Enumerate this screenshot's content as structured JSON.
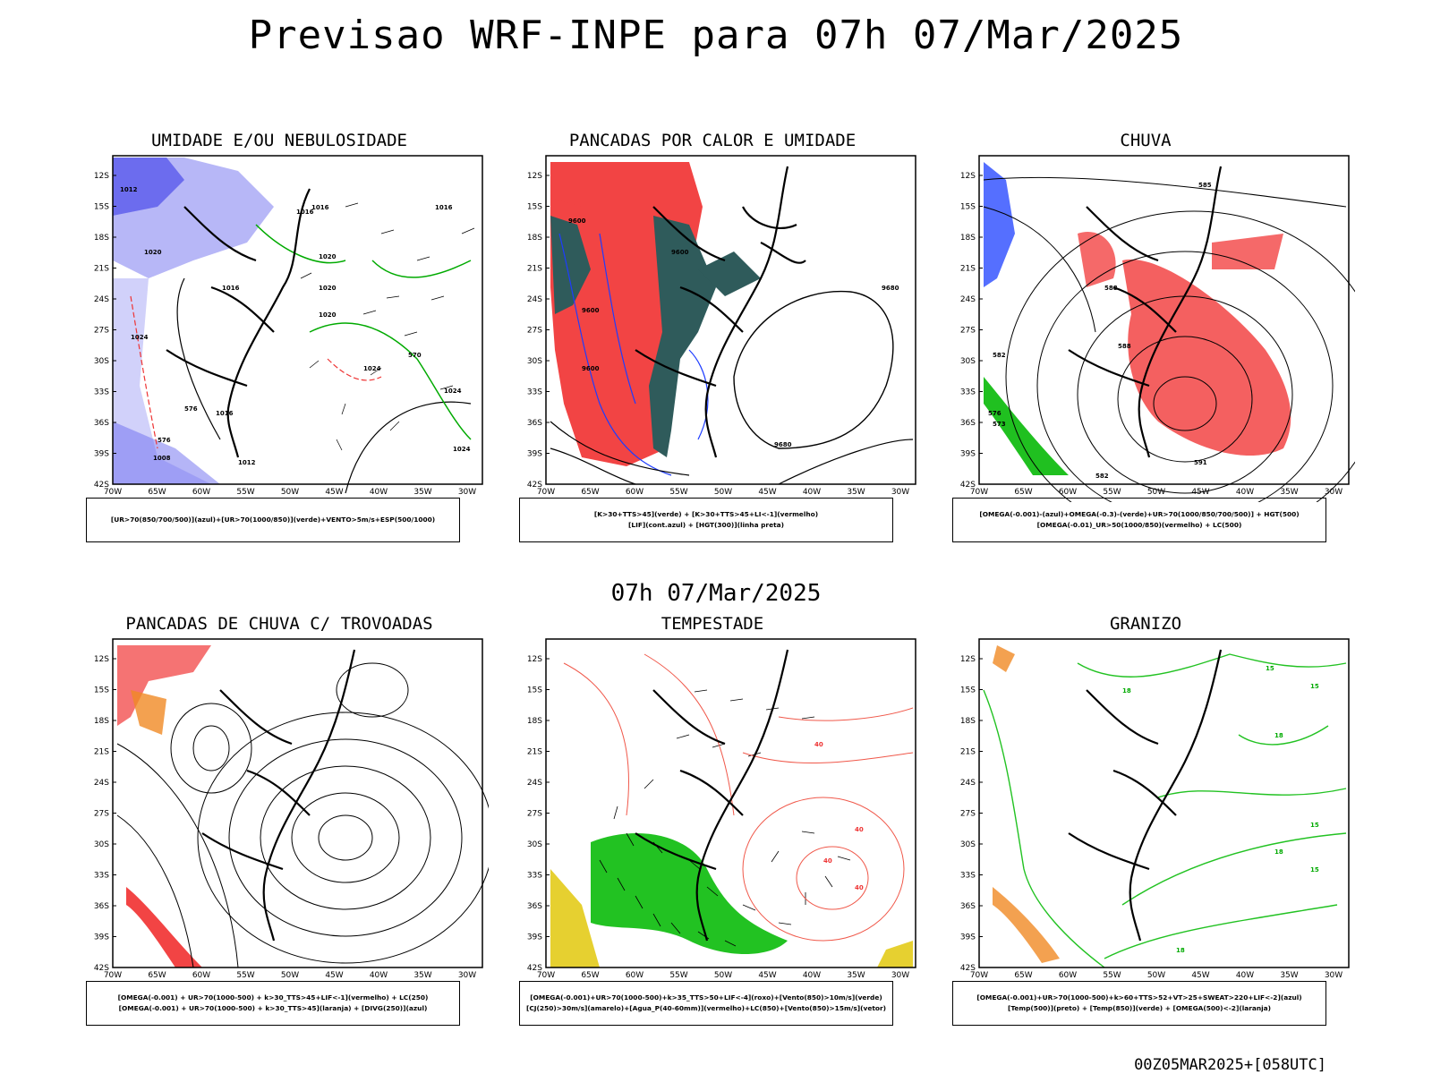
{
  "header": {
    "title": "Previsao WRF-INPE  para 07h 07/Mar/2025"
  },
  "middle": {
    "label": "07h 07/Mar/2025"
  },
  "footer": {
    "run": "00Z05MAR2025+[058UTC]"
  },
  "axes": {
    "lat_labels": [
      "12S",
      "15S",
      "18S",
      "21S",
      "24S",
      "27S",
      "30S",
      "33S",
      "36S",
      "39S",
      "42S"
    ],
    "lon_labels": [
      "70W",
      "65W",
      "60W",
      "55W",
      "50W",
      "45W",
      "40W",
      "35W",
      "30W"
    ]
  },
  "panels": [
    {
      "title": "UMIDADE E/OU NEBULOSIDADE",
      "legend": [
        "[UR>70(850/700/500)](azul)+[UR>70(1000/850)](verde)+VENTO>5m/s+ESP(500/1000)"
      ],
      "labels": [
        "1012",
        "1016",
        "1020",
        "1016",
        "1016",
        "1020",
        "1016",
        "1020",
        "1020",
        "1024",
        "1024",
        "1024",
        "1016",
        "1012",
        "1008",
        "1024",
        "570",
        "576",
        "576"
      ]
    },
    {
      "title": "PANCADAS POR CALOR E UMIDADE",
      "legend": [
        "[K>30+TTS>45](verde)  +  [K>30+TTS>45+LI<-1](vermelho)",
        "[LIF](cont.azul)  +  [HGT(300)](linha preta)"
      ],
      "labels": [
        "9600",
        "9600",
        "9600",
        "9600",
        "9680",
        "9680"
      ]
    },
    {
      "title": "CHUVA",
      "legend": [
        "[OMEGA(-0.001)-(azul)+OMEGA(-0.3)-(verde)+UR>70(1000/850/700/500)]  +  HGT(500)",
        "[OMEGA(-0.01)_UR>50(1000/850)(vermelho)  +  LC(500)"
      ],
      "labels": [
        "585",
        "588",
        "588",
        "582",
        "576",
        "573",
        "591",
        "582"
      ]
    },
    {
      "title": "PANCADAS DE CHUVA C/ TROVOADAS",
      "legend": [
        "[OMEGA(-0.001)  +  UR>70(1000-500)  +  k>30_TTS>45+LIF<-1](vermelho)  +  LC(250)",
        "[OMEGA(-0.001)  +  UR>70(1000-500)  +  k>30_TTS>45](laranja)  +  [DIVG(250)](azul)"
      ],
      "labels": []
    },
    {
      "title": "TEMPESTADE",
      "legend": [
        "[OMEGA(-0.001)+UR>70(1000-500)+k>35_TTS>50+LIF<-4](roxo)+[Vento(850)>10m/s](verde)",
        "[CJ(250)>30m/s](amarelo)+[Agua_P(40-60mm)](vermelho)+LC(850)+[Vento(850)>15m/s](vetor)"
      ],
      "labels": [
        "40",
        "40",
        "40",
        "40"
      ]
    },
    {
      "title": "GRANIZO",
      "legend": [
        "[OMEGA(-0.001)+UR>70(1000-500)+k>60+TTS>52+VT>25+SWEAT>220+LIF<-2](azul)",
        "[Temp(500)](preto)  +  [Temp(850)](verde)  +  [OMEGA(500)<-2](laranja)"
      ],
      "labels": [
        "15",
        "18",
        "15",
        "18",
        "15",
        "18",
        "15",
        "18"
      ]
    }
  ]
}
